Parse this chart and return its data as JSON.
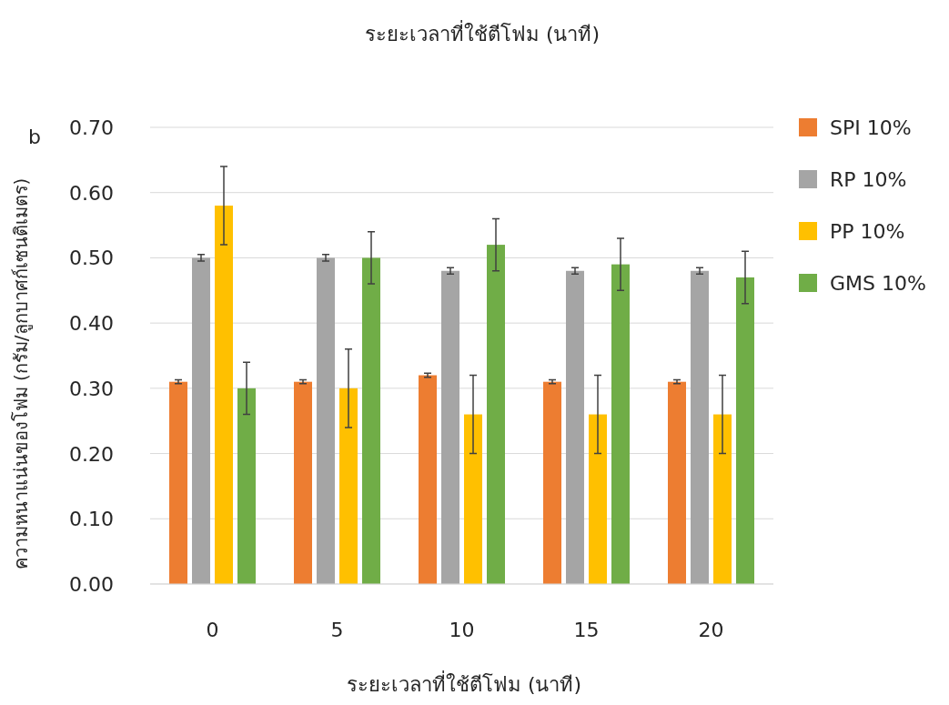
{
  "chart_data": {
    "type": "bar",
    "title": "ระยะเวลาที่ใช้ตีโฟม (นาที)",
    "xlabel": "ระยะเวลาที่ใช้ตีโฟม (นาที)",
    "ylabel": "ความหนาแน่นของโฟม (กรัม/ลูกบาศก์เซนติเมตร)",
    "annotations": [
      "b"
    ],
    "categories": [
      "0",
      "5",
      "10",
      "15",
      "20"
    ],
    "series": [
      {
        "name": "SPI 10%",
        "color": "#ed7d31",
        "values": [
          0.31,
          0.31,
          0.32,
          0.31,
          0.31
        ],
        "errors": [
          0.003,
          0.003,
          0.003,
          0.003,
          0.003
        ]
      },
      {
        "name": "RP 10%",
        "color": "#a5a5a5",
        "values": [
          0.5,
          0.5,
          0.48,
          0.48,
          0.48
        ],
        "errors": [
          0.005,
          0.005,
          0.005,
          0.005,
          0.005
        ]
      },
      {
        "name": "PP 10%",
        "color": "#ffc000",
        "values": [
          0.58,
          0.3,
          0.26,
          0.26,
          0.26
        ],
        "errors": [
          0.06,
          0.06,
          0.06,
          0.06,
          0.06
        ]
      },
      {
        "name": "GMS 10%",
        "color": "#70ad47",
        "values": [
          0.3,
          0.5,
          0.52,
          0.49,
          0.47
        ],
        "errors": [
          0.04,
          0.04,
          0.04,
          0.04,
          0.04
        ]
      }
    ],
    "ylim": [
      0,
      0.7
    ],
    "yticks": [
      {
        "value": 0,
        "label": "0.00"
      },
      {
        "value": 0.1,
        "label": "0.10"
      },
      {
        "value": 0.2,
        "label": "0.20"
      },
      {
        "value": 0.3,
        "label": "0.30"
      },
      {
        "value": 0.4,
        "label": "0.40"
      },
      {
        "value": 0.5,
        "label": "0.50"
      },
      {
        "value": 0.6,
        "label": "0.60"
      },
      {
        "value": 0.7,
        "label": "0.70"
      }
    ],
    "grid": "y",
    "legend": "right"
  }
}
